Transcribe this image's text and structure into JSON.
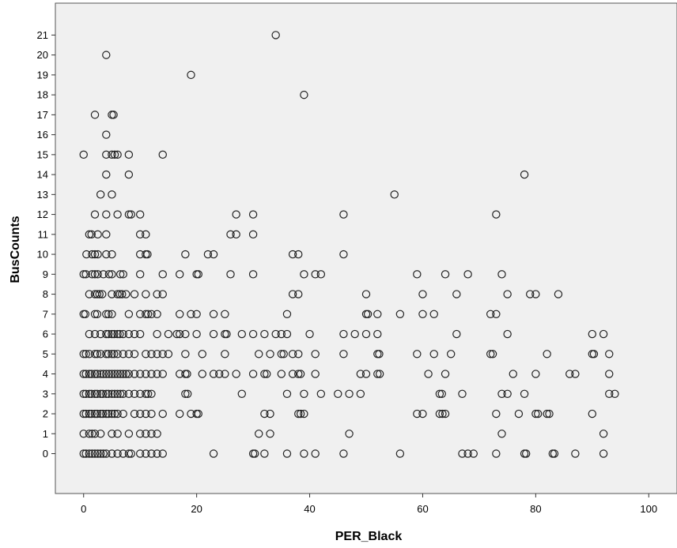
{
  "chart_data": {
    "type": "scatter",
    "title": "",
    "xlabel": "PER_Black",
    "ylabel": "BusCounts",
    "xlim": [
      -5,
      105
    ],
    "ylim": [
      -2,
      22.6
    ],
    "x_ticks": [
      0,
      20,
      40,
      60,
      80,
      100
    ],
    "y_ticks": [
      0,
      1,
      2,
      3,
      4,
      5,
      6,
      7,
      8,
      9,
      10,
      11,
      12,
      13,
      14,
      15,
      16,
      17,
      18,
      19,
      20,
      21
    ],
    "grid": false,
    "legend": "none",
    "colors": {
      "plot_background": "#f0f0f0",
      "marker": "#222222",
      "frame": "#555555",
      "page": "#ffffff"
    },
    "marker": "open-circle",
    "points": [
      [
        34,
        21
      ],
      [
        4,
        20
      ],
      [
        19,
        19
      ],
      [
        39,
        18
      ],
      [
        2,
        17
      ],
      [
        5,
        17
      ],
      [
        5.3,
        17
      ],
      [
        4,
        16
      ],
      [
        0,
        15
      ],
      [
        4,
        15
      ],
      [
        5,
        15
      ],
      [
        5.5,
        15
      ],
      [
        6,
        15
      ],
      [
        8,
        15
      ],
      [
        14,
        15
      ],
      [
        4,
        14
      ],
      [
        8,
        14
      ],
      [
        78,
        14
      ],
      [
        3,
        13
      ],
      [
        5,
        13
      ],
      [
        55,
        13
      ],
      [
        2,
        12
      ],
      [
        4,
        12
      ],
      [
        6,
        12
      ],
      [
        8,
        12
      ],
      [
        8.4,
        12
      ],
      [
        10,
        12
      ],
      [
        27,
        12
      ],
      [
        30,
        12
      ],
      [
        46,
        12
      ],
      [
        73,
        12
      ],
      [
        1,
        11
      ],
      [
        1.4,
        11
      ],
      [
        2.5,
        11
      ],
      [
        4,
        11
      ],
      [
        10,
        11
      ],
      [
        11,
        11
      ],
      [
        26,
        11
      ],
      [
        27,
        11
      ],
      [
        30,
        11
      ],
      [
        0.5,
        10
      ],
      [
        1.5,
        10
      ],
      [
        2,
        10
      ],
      [
        2.5,
        10
      ],
      [
        4,
        10
      ],
      [
        5,
        10
      ],
      [
        10,
        10
      ],
      [
        11,
        10
      ],
      [
        11.3,
        10
      ],
      [
        18,
        10
      ],
      [
        22,
        10
      ],
      [
        23,
        10
      ],
      [
        37,
        10
      ],
      [
        38,
        10
      ],
      [
        46,
        10
      ],
      [
        0,
        9
      ],
      [
        0.4,
        9
      ],
      [
        1.5,
        9
      ],
      [
        2,
        9
      ],
      [
        2.5,
        9
      ],
      [
        3.5,
        9
      ],
      [
        4.5,
        9
      ],
      [
        5,
        9
      ],
      [
        6.5,
        9
      ],
      [
        7,
        9
      ],
      [
        10,
        9
      ],
      [
        14,
        9
      ],
      [
        17,
        9
      ],
      [
        20,
        9
      ],
      [
        20.3,
        9
      ],
      [
        26,
        9
      ],
      [
        30,
        9
      ],
      [
        39,
        9
      ],
      [
        41,
        9
      ],
      [
        42,
        9
      ],
      [
        59,
        9
      ],
      [
        64,
        9
      ],
      [
        68,
        9
      ],
      [
        74,
        9
      ],
      [
        1,
        8
      ],
      [
        2,
        8
      ],
      [
        2.4,
        8
      ],
      [
        2.8,
        8
      ],
      [
        3.3,
        8
      ],
      [
        5,
        8
      ],
      [
        6,
        8
      ],
      [
        6.4,
        8
      ],
      [
        6.8,
        8
      ],
      [
        7.5,
        8
      ],
      [
        9,
        8
      ],
      [
        11,
        8
      ],
      [
        13,
        8
      ],
      [
        14,
        8
      ],
      [
        37,
        8
      ],
      [
        38,
        8
      ],
      [
        50,
        8
      ],
      [
        60,
        8
      ],
      [
        66,
        8
      ],
      [
        75,
        8
      ],
      [
        79,
        8
      ],
      [
        80,
        8
      ],
      [
        84,
        8
      ],
      [
        0,
        7
      ],
      [
        0.3,
        7
      ],
      [
        2,
        7
      ],
      [
        2.4,
        7
      ],
      [
        4,
        7
      ],
      [
        4.4,
        7
      ],
      [
        5,
        7
      ],
      [
        8,
        7
      ],
      [
        10,
        7
      ],
      [
        11,
        7
      ],
      [
        11.4,
        7
      ],
      [
        12,
        7
      ],
      [
        13,
        7
      ],
      [
        17,
        7
      ],
      [
        19,
        7
      ],
      [
        20,
        7
      ],
      [
        23,
        7
      ],
      [
        25,
        7
      ],
      [
        36,
        7
      ],
      [
        50,
        7
      ],
      [
        50.3,
        7
      ],
      [
        52,
        7
      ],
      [
        56,
        7
      ],
      [
        60,
        7
      ],
      [
        62,
        7
      ],
      [
        72,
        7
      ],
      [
        73,
        7
      ],
      [
        1,
        6
      ],
      [
        2,
        6
      ],
      [
        3,
        6
      ],
      [
        4,
        6
      ],
      [
        4.4,
        6
      ],
      [
        5,
        6
      ],
      [
        5.4,
        6
      ],
      [
        6,
        6
      ],
      [
        6.4,
        6
      ],
      [
        7,
        6
      ],
      [
        8,
        6
      ],
      [
        9,
        6
      ],
      [
        10,
        6
      ],
      [
        13,
        6
      ],
      [
        15,
        6
      ],
      [
        16.5,
        6
      ],
      [
        17,
        6
      ],
      [
        18,
        6
      ],
      [
        20,
        6
      ],
      [
        23,
        6
      ],
      [
        25,
        6
      ],
      [
        25.3,
        6
      ],
      [
        28,
        6
      ],
      [
        30,
        6
      ],
      [
        32,
        6
      ],
      [
        34,
        6
      ],
      [
        35,
        6
      ],
      [
        36,
        6
      ],
      [
        40,
        6
      ],
      [
        46,
        6
      ],
      [
        48,
        6
      ],
      [
        50,
        6
      ],
      [
        52,
        6
      ],
      [
        66,
        6
      ],
      [
        75,
        6
      ],
      [
        90,
        6
      ],
      [
        92,
        6
      ],
      [
        0,
        5
      ],
      [
        0.4,
        5
      ],
      [
        1,
        5
      ],
      [
        2,
        5
      ],
      [
        2.4,
        5
      ],
      [
        3,
        5
      ],
      [
        4,
        5
      ],
      [
        4.4,
        5
      ],
      [
        5,
        5
      ],
      [
        5.4,
        5
      ],
      [
        6,
        5
      ],
      [
        7,
        5
      ],
      [
        8,
        5
      ],
      [
        9,
        5
      ],
      [
        11,
        5
      ],
      [
        12,
        5
      ],
      [
        13,
        5
      ],
      [
        14,
        5
      ],
      [
        15,
        5
      ],
      [
        18,
        5
      ],
      [
        21,
        5
      ],
      [
        25,
        5
      ],
      [
        31,
        5
      ],
      [
        33,
        5
      ],
      [
        35,
        5
      ],
      [
        35.4,
        5
      ],
      [
        37,
        5
      ],
      [
        38,
        5
      ],
      [
        41,
        5
      ],
      [
        46,
        5
      ],
      [
        52,
        5
      ],
      [
        52.3,
        5
      ],
      [
        59,
        5
      ],
      [
        62,
        5
      ],
      [
        65,
        5
      ],
      [
        72,
        5
      ],
      [
        72.4,
        5
      ],
      [
        82,
        5
      ],
      [
        90,
        5
      ],
      [
        90.3,
        5
      ],
      [
        93,
        5
      ],
      [
        0,
        4
      ],
      [
        0.4,
        4
      ],
      [
        1,
        4
      ],
      [
        1.4,
        4
      ],
      [
        2,
        4
      ],
      [
        2.4,
        4
      ],
      [
        3,
        4
      ],
      [
        3.5,
        4
      ],
      [
        4,
        4
      ],
      [
        4.5,
        4
      ],
      [
        5,
        4
      ],
      [
        5.5,
        4
      ],
      [
        6,
        4
      ],
      [
        6.5,
        4
      ],
      [
        7,
        4
      ],
      [
        7.5,
        4
      ],
      [
        8,
        4
      ],
      [
        9,
        4
      ],
      [
        10,
        4
      ],
      [
        11,
        4
      ],
      [
        12,
        4
      ],
      [
        13,
        4
      ],
      [
        14,
        4
      ],
      [
        17,
        4
      ],
      [
        18,
        4
      ],
      [
        18.3,
        4
      ],
      [
        21,
        4
      ],
      [
        23,
        4
      ],
      [
        24,
        4
      ],
      [
        25,
        4
      ],
      [
        27,
        4
      ],
      [
        30,
        4
      ],
      [
        32,
        4
      ],
      [
        32.4,
        4
      ],
      [
        35,
        4
      ],
      [
        37,
        4
      ],
      [
        38,
        4
      ],
      [
        38.4,
        4
      ],
      [
        41,
        4
      ],
      [
        49,
        4
      ],
      [
        50,
        4
      ],
      [
        52,
        4
      ],
      [
        52.4,
        4
      ],
      [
        61,
        4
      ],
      [
        64,
        4
      ],
      [
        76,
        4
      ],
      [
        80,
        4
      ],
      [
        86,
        4
      ],
      [
        87,
        4
      ],
      [
        93,
        4
      ],
      [
        0,
        3
      ],
      [
        0.4,
        3
      ],
      [
        1,
        3
      ],
      [
        1.4,
        3
      ],
      [
        2,
        3
      ],
      [
        2.4,
        3
      ],
      [
        3,
        3
      ],
      [
        3.4,
        3
      ],
      [
        4,
        3
      ],
      [
        4.4,
        3
      ],
      [
        5,
        3
      ],
      [
        5.5,
        3
      ],
      [
        6,
        3
      ],
      [
        6.5,
        3
      ],
      [
        7,
        3
      ],
      [
        8,
        3
      ],
      [
        9,
        3
      ],
      [
        10,
        3
      ],
      [
        11,
        3
      ],
      [
        11.4,
        3
      ],
      [
        12,
        3
      ],
      [
        18,
        3
      ],
      [
        18.4,
        3
      ],
      [
        28,
        3
      ],
      [
        36,
        3
      ],
      [
        39,
        3
      ],
      [
        42,
        3
      ],
      [
        45,
        3
      ],
      [
        47,
        3
      ],
      [
        49,
        3
      ],
      [
        63,
        3
      ],
      [
        63.4,
        3
      ],
      [
        67,
        3
      ],
      [
        74,
        3
      ],
      [
        75,
        3
      ],
      [
        78,
        3
      ],
      [
        93,
        3
      ],
      [
        94,
        3
      ],
      [
        0,
        2
      ],
      [
        0.4,
        2
      ],
      [
        1,
        2
      ],
      [
        1.4,
        2
      ],
      [
        2,
        2
      ],
      [
        2.4,
        2
      ],
      [
        3,
        2
      ],
      [
        3.4,
        2
      ],
      [
        4,
        2
      ],
      [
        4.4,
        2
      ],
      [
        5,
        2
      ],
      [
        5.5,
        2
      ],
      [
        6,
        2
      ],
      [
        7,
        2
      ],
      [
        9,
        2
      ],
      [
        10,
        2
      ],
      [
        11,
        2
      ],
      [
        12,
        2
      ],
      [
        14,
        2
      ],
      [
        17,
        2
      ],
      [
        19,
        2
      ],
      [
        20,
        2
      ],
      [
        20.3,
        2
      ],
      [
        32,
        2
      ],
      [
        33,
        2
      ],
      [
        38,
        2
      ],
      [
        38.4,
        2
      ],
      [
        39,
        2
      ],
      [
        59,
        2
      ],
      [
        60,
        2
      ],
      [
        63,
        2
      ],
      [
        63.5,
        2
      ],
      [
        64,
        2
      ],
      [
        73,
        2
      ],
      [
        77,
        2
      ],
      [
        80,
        2
      ],
      [
        80.4,
        2
      ],
      [
        82,
        2
      ],
      [
        82.4,
        2
      ],
      [
        90,
        2
      ],
      [
        0,
        1
      ],
      [
        1,
        1
      ],
      [
        1.5,
        1
      ],
      [
        2,
        1
      ],
      [
        3,
        1
      ],
      [
        5,
        1
      ],
      [
        6,
        1
      ],
      [
        8,
        1
      ],
      [
        10,
        1
      ],
      [
        11,
        1
      ],
      [
        12,
        1
      ],
      [
        13,
        1
      ],
      [
        31,
        1
      ],
      [
        33,
        1
      ],
      [
        47,
        1
      ],
      [
        74,
        1
      ],
      [
        92,
        1
      ],
      [
        0,
        0
      ],
      [
        0.4,
        0
      ],
      [
        1,
        0
      ],
      [
        1.5,
        0
      ],
      [
        2,
        0
      ],
      [
        2.5,
        0
      ],
      [
        3,
        0
      ],
      [
        3.5,
        0
      ],
      [
        4,
        0
      ],
      [
        5,
        0
      ],
      [
        6,
        0
      ],
      [
        7,
        0
      ],
      [
        8,
        0
      ],
      [
        8.4,
        0
      ],
      [
        10,
        0
      ],
      [
        11,
        0
      ],
      [
        12,
        0
      ],
      [
        13,
        0
      ],
      [
        14,
        0
      ],
      [
        23,
        0
      ],
      [
        30,
        0
      ],
      [
        30.3,
        0
      ],
      [
        32,
        0
      ],
      [
        36,
        0
      ],
      [
        39,
        0
      ],
      [
        41,
        0
      ],
      [
        46,
        0
      ],
      [
        56,
        0
      ],
      [
        67,
        0
      ],
      [
        68,
        0
      ],
      [
        69,
        0
      ],
      [
        73,
        0
      ],
      [
        78,
        0
      ],
      [
        78.3,
        0
      ],
      [
        83,
        0
      ],
      [
        83.3,
        0
      ],
      [
        87,
        0
      ],
      [
        92,
        0
      ]
    ]
  }
}
